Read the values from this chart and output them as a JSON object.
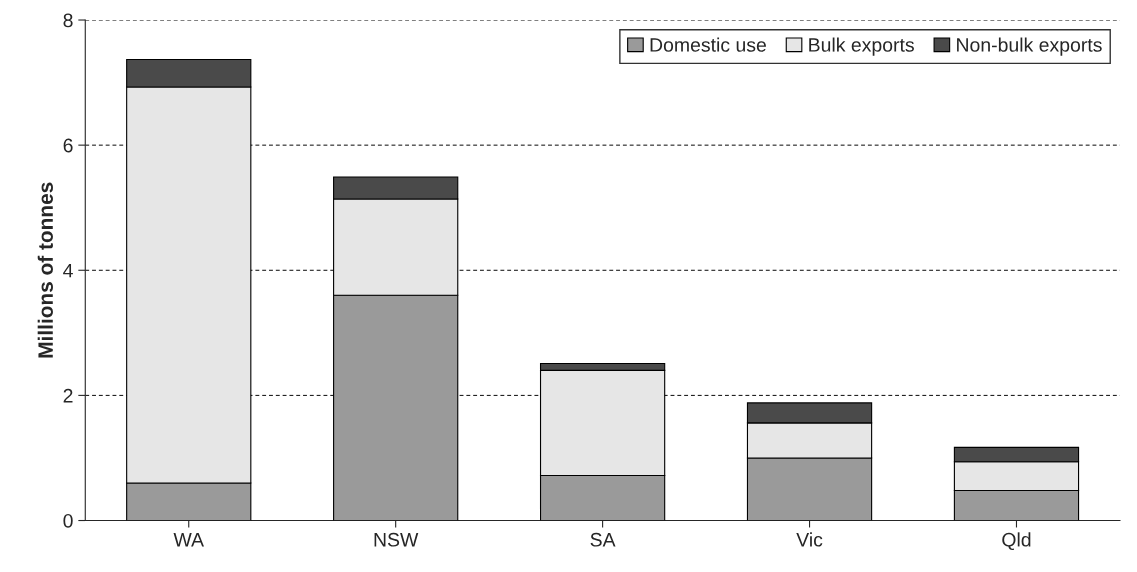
{
  "chart_data": {
    "type": "bar",
    "ylabel": "Millions of tonnes",
    "categories": [
      "WA",
      "NSW",
      "SA",
      "Vic",
      "Qld"
    ],
    "stacked": true,
    "series": [
      {
        "name": "Domestic use",
        "color": "#9a9a9a",
        "values": [
          0.6,
          3.6,
          0.72,
          1.0,
          0.48
        ]
      },
      {
        "name": "Bulk exports",
        "color": "#e6e6e6",
        "values": [
          6.33,
          1.54,
          1.68,
          0.56,
          0.46
        ]
      },
      {
        "name": "Non-bulk exports",
        "color": "#4a4a4a",
        "values": [
          0.44,
          0.35,
          0.11,
          0.32,
          0.23
        ]
      }
    ],
    "ylim": [
      0,
      8
    ],
    "yticks": [
      0,
      2,
      4,
      6,
      8
    ],
    "grid": "y",
    "legend": "top right"
  }
}
